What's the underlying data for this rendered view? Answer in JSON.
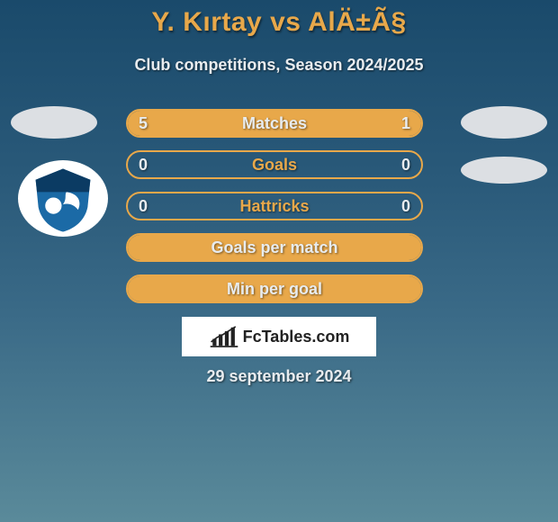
{
  "title": "Y. Kırtay vs AlÄ±Ã§",
  "subtitle": "Club competitions, Season 2024/2025",
  "date_text": "29 september 2024",
  "brand": "FcTables.com",
  "colors": {
    "accent": "#e8a84a",
    "text_light": "#e8ecef",
    "bg_top": "#1a4a6b",
    "bg_bottom": "#5a8a9a",
    "disc": "#dcdfe3",
    "brand_bg": "#ffffff",
    "brand_text": "#222222",
    "club_badge_main": "#1b6aa6",
    "club_badge_dark": "#0b3b63"
  },
  "rows": [
    {
      "metric": "Matches",
      "left": "5",
      "right": "1",
      "left_pct": 83,
      "right_pct": 17,
      "label_on_fill": true
    },
    {
      "metric": "Goals",
      "left": "0",
      "right": "0",
      "left_pct": 0,
      "right_pct": 0,
      "label_on_fill": false
    },
    {
      "metric": "Hattricks",
      "left": "0",
      "right": "0",
      "left_pct": 0,
      "right_pct": 0,
      "label_on_fill": false
    },
    {
      "metric": "Goals per match",
      "left": "",
      "right": "",
      "left_pct": 100,
      "right_pct": 0,
      "label_on_fill": true,
      "full": true
    },
    {
      "metric": "Min per goal",
      "left": "",
      "right": "",
      "left_pct": 100,
      "right_pct": 0,
      "label_on_fill": true,
      "full": true
    }
  ]
}
